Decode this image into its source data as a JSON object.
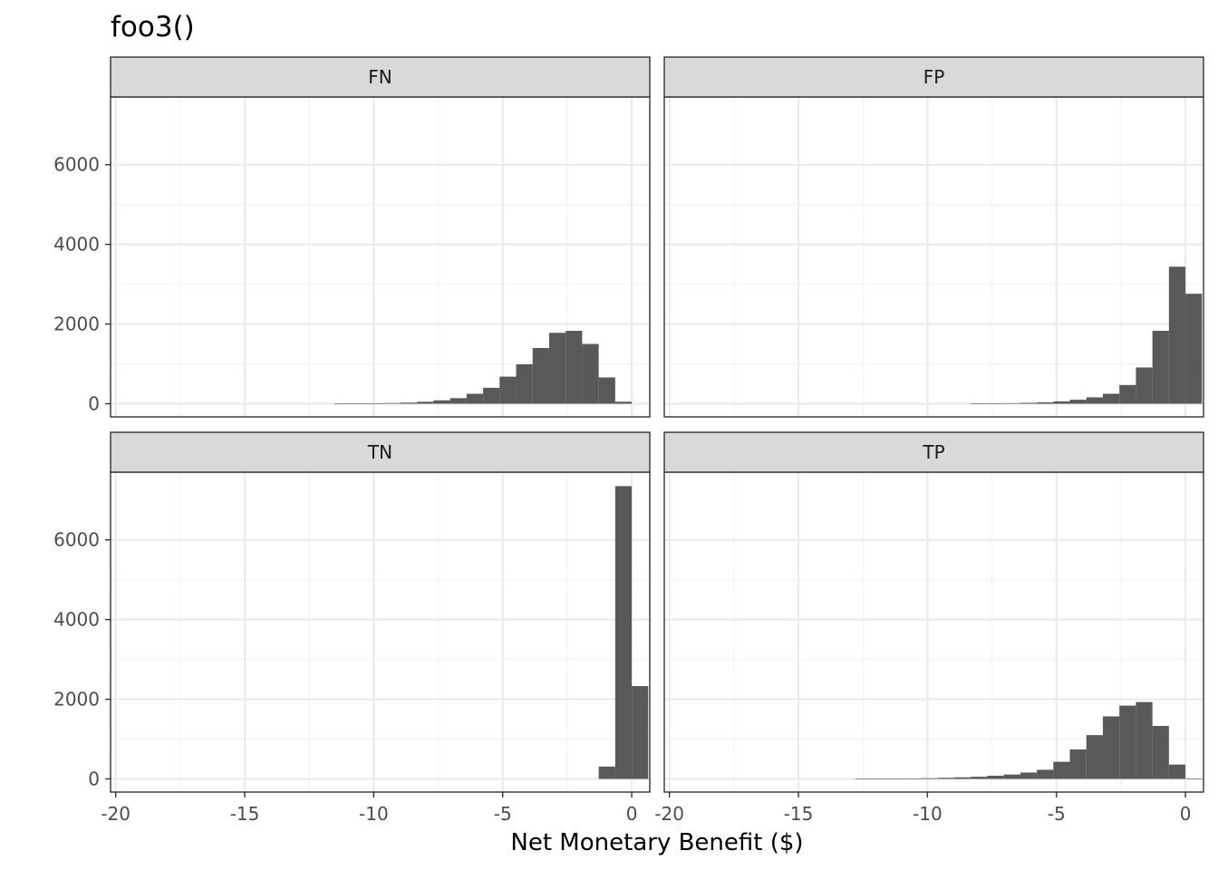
{
  "chart_data": {
    "type": "bar",
    "subtype": "faceted-histogram",
    "title": "foo3()",
    "xlabel": "Net Monetary Benefit ($)",
    "ylabel": "",
    "xlim": [
      -20.2,
      0.7
    ],
    "ylim": [
      -330,
      7700
    ],
    "x_ticks": [
      -20,
      -15,
      -10,
      -5,
      0
    ],
    "y_ticks": [
      0,
      2000,
      4000,
      6000
    ],
    "bin_width": 0.64,
    "bar_color": "#595959",
    "grid": true,
    "legend": "none",
    "panels": [
      {
        "label": "FN",
        "bins": [
          {
            "x": -11.2,
            "y": 4
          },
          {
            "x": -10.56,
            "y": 6
          },
          {
            "x": -9.92,
            "y": 10
          },
          {
            "x": -9.28,
            "y": 16
          },
          {
            "x": -8.64,
            "y": 28
          },
          {
            "x": -8.0,
            "y": 50
          },
          {
            "x": -7.36,
            "y": 85
          },
          {
            "x": -6.72,
            "y": 140
          },
          {
            "x": -6.08,
            "y": 250
          },
          {
            "x": -5.44,
            "y": 400
          },
          {
            "x": -4.8,
            "y": 680
          },
          {
            "x": -4.16,
            "y": 990
          },
          {
            "x": -3.52,
            "y": 1400
          },
          {
            "x": -2.88,
            "y": 1780
          },
          {
            "x": -2.24,
            "y": 1830
          },
          {
            "x": -1.6,
            "y": 1500
          },
          {
            "x": -0.96,
            "y": 660
          },
          {
            "x": -0.32,
            "y": 50
          }
        ]
      },
      {
        "label": "FP",
        "bins": [
          {
            "x": -8.0,
            "y": 4
          },
          {
            "x": -7.36,
            "y": 8
          },
          {
            "x": -6.72,
            "y": 14
          },
          {
            "x": -6.08,
            "y": 22
          },
          {
            "x": -5.44,
            "y": 35
          },
          {
            "x": -4.8,
            "y": 60
          },
          {
            "x": -4.16,
            "y": 100
          },
          {
            "x": -3.52,
            "y": 160
          },
          {
            "x": -2.88,
            "y": 250
          },
          {
            "x": -2.24,
            "y": 470
          },
          {
            "x": -1.6,
            "y": 910
          },
          {
            "x": -0.96,
            "y": 1830
          },
          {
            "x": -0.32,
            "y": 3440
          },
          {
            "x": 0.32,
            "y": 2760
          }
        ]
      },
      {
        "label": "TN",
        "bins": [
          {
            "x": -0.96,
            "y": 310
          },
          {
            "x": -0.32,
            "y": 7350
          },
          {
            "x": 0.32,
            "y": 2330
          }
        ]
      },
      {
        "label": "TP",
        "bins": [
          {
            "x": -12.48,
            "y": 3
          },
          {
            "x": -11.84,
            "y": 5
          },
          {
            "x": -11.2,
            "y": 8
          },
          {
            "x": -10.56,
            "y": 12
          },
          {
            "x": -9.92,
            "y": 18
          },
          {
            "x": -9.28,
            "y": 28
          },
          {
            "x": -8.64,
            "y": 40
          },
          {
            "x": -8.0,
            "y": 55
          },
          {
            "x": -7.36,
            "y": 80
          },
          {
            "x": -6.72,
            "y": 110
          },
          {
            "x": -6.08,
            "y": 160
          },
          {
            "x": -5.44,
            "y": 230
          },
          {
            "x": -4.8,
            "y": 430
          },
          {
            "x": -4.16,
            "y": 740
          },
          {
            "x": -3.52,
            "y": 1100
          },
          {
            "x": -2.88,
            "y": 1570
          },
          {
            "x": -2.24,
            "y": 1840
          },
          {
            "x": -1.6,
            "y": 1930
          },
          {
            "x": -0.96,
            "y": 1330
          },
          {
            "x": -0.32,
            "y": 360
          },
          {
            "x": 0.32,
            "y": 5
          }
        ]
      }
    ]
  }
}
